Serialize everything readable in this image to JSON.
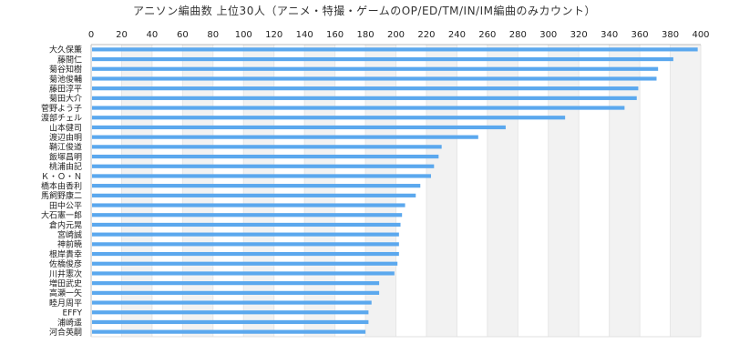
{
  "chart_data": {
    "type": "bar",
    "orientation": "horizontal",
    "title": "アニソン編曲数 上位30人（アニメ・特撮・ゲームのOP/ED/TM/IN/IM編曲のみカウント）",
    "xlabel": "",
    "ylabel": "",
    "xlim": [
      0,
      400
    ],
    "xticks": [
      0,
      20,
      40,
      60,
      80,
      100,
      120,
      140,
      160,
      180,
      200,
      220,
      240,
      260,
      280,
      300,
      320,
      340,
      360,
      380,
      400
    ],
    "x_axis_position": "top",
    "grid": true,
    "legend": "none",
    "colors": {
      "bar": "#5ba8ee",
      "band": "#f2f2f2",
      "axis": "#bdbdbd"
    },
    "categories": [
      "大久保薫",
      "藤間仁",
      "菊谷知樹",
      "菊池俊輔",
      "藤田淳平",
      "菊田大介",
      "菅野よう子",
      "渡部チェル",
      "山本健司",
      "渡辺由明",
      "鞘江俊道",
      "飯塚昌明",
      "桃浦由記",
      "Ｋ・Ｏ・Ｎ",
      "橋本由香利",
      "馬飼野康二",
      "田中公平",
      "大石憲一郎",
      "倉内元晃",
      "宮崎誠",
      "神前暁",
      "根岸貴幸",
      "佐橋俊彦",
      "川井憲次",
      "増田武史",
      "高瀬一矢",
      "睦月周平",
      "EFFY",
      "浦崎遥",
      "河合英嗣"
    ],
    "values": [
      398,
      382,
      372,
      371,
      359,
      358,
      350,
      311,
      272,
      254,
      230,
      228,
      225,
      223,
      216,
      213,
      206,
      204,
      203,
      202,
      202,
      202,
      201,
      199,
      189,
      189,
      184,
      182,
      182,
      180
    ]
  }
}
